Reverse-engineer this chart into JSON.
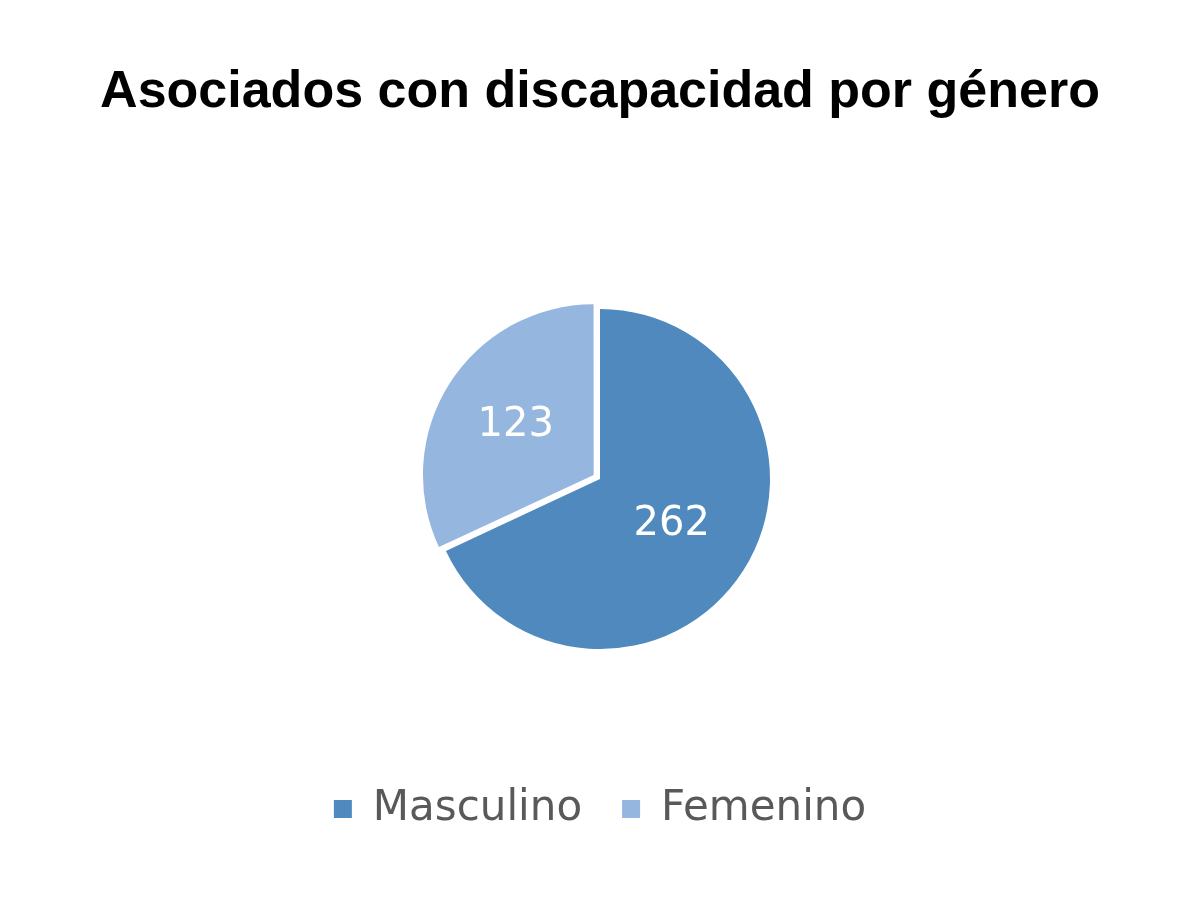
{
  "chart_data": {
    "type": "pie",
    "title": "Asociados con discapacidad por género",
    "categories": [
      "Masculino",
      "Femenino"
    ],
    "values": [
      262,
      123
    ],
    "colors": [
      "#4f89bd",
      "#95b6de"
    ],
    "data_labels": true,
    "legend": "bottom"
  }
}
